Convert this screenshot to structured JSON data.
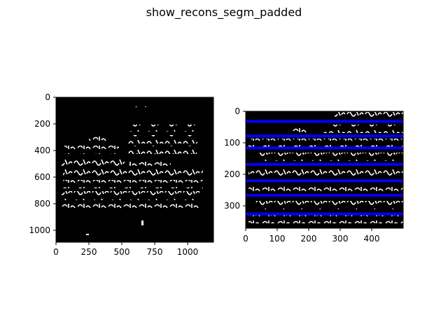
{
  "figure": {
    "title": "show_recons_segm_padded"
  },
  "panels": [
    {
      "id": "left",
      "image": "binarized manuscript fragment (white Aramaic script on black)",
      "x_ticks": [
        "0",
        "250",
        "500",
        "750",
        "1000"
      ],
      "y_ticks": [
        "0",
        "200",
        "400",
        "600",
        "800",
        "1000"
      ],
      "x_range": [
        0,
        1190
      ],
      "y_range": [
        0,
        1090
      ]
    },
    {
      "id": "right",
      "image": "reconstructed padded text lines with blue segmentation lines",
      "x_ticks": [
        "0",
        "100",
        "200",
        "300",
        "400"
      ],
      "y_ticks": [
        "0",
        "100",
        "200",
        "300"
      ],
      "x_range": [
        0,
        500
      ],
      "y_range": [
        0,
        370
      ],
      "segmentation_line_color": "#0000ff",
      "segmentation_lines_y": [
        32,
        78,
        116,
        168,
        220,
        266,
        325
      ]
    }
  ]
}
